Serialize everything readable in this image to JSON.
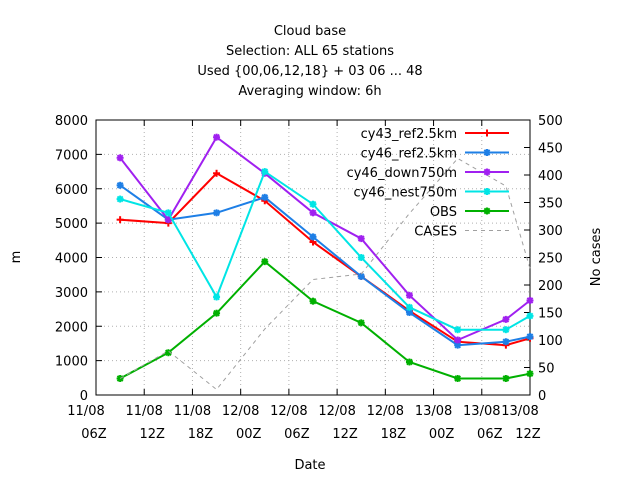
{
  "chart_data": {
    "type": "line",
    "title": [
      "Cloud base",
      "Selection: ALL      65 stations",
      "Used {00,06,12,18} + 03 06 ... 48",
      "Averaging window:  6h"
    ],
    "xlabel": "Date",
    "ylabel": "m",
    "y2label": "No cases",
    "x_ticks": [
      {
        "t": 0,
        "top": "11/08",
        "bottom": "06Z"
      },
      {
        "t": 6,
        "top": "11/08",
        "bottom": "12Z"
      },
      {
        "t": 12,
        "top": "11/08",
        "bottom": "18Z"
      },
      {
        "t": 18,
        "top": "12/08",
        "bottom": "00Z"
      },
      {
        "t": 24,
        "top": "12/08",
        "bottom": "06Z"
      },
      {
        "t": 30,
        "top": "12/08",
        "bottom": "12Z"
      },
      {
        "t": 36,
        "top": "12/08",
        "bottom": "18Z"
      },
      {
        "t": 42,
        "top": "13/08",
        "bottom": "00Z"
      },
      {
        "t": 48,
        "top": "13/08",
        "bottom": "06Z"
      },
      {
        "t": 54,
        "top": "13/08",
        "bottom": "12Z"
      }
    ],
    "xlim": [
      0,
      54
    ],
    "ylim": [
      0,
      8000
    ],
    "y_ticks": [
      0,
      1000,
      2000,
      3000,
      4000,
      5000,
      6000,
      7000,
      8000
    ],
    "y2lim": [
      0,
      500
    ],
    "y2_ticks": [
      0,
      50,
      100,
      150,
      200,
      250,
      300,
      350,
      400,
      450,
      500
    ],
    "x": [
      3,
      9,
      15,
      21,
      27,
      33,
      39,
      45,
      51,
      54
    ],
    "legend_position": "top-right",
    "series": [
      {
        "name": "cy43_ref2.5km",
        "color": "#ff0000",
        "marker": "plus",
        "axis": "y",
        "values": [
          5100,
          5000,
          6450,
          5650,
          4450,
          3450,
          2450,
          1550,
          1450,
          1650
        ]
      },
      {
        "name": "cy46_ref2.5km",
        "color": "#1e7fe6",
        "marker": "star",
        "axis": "y",
        "values": [
          6100,
          5100,
          5300,
          5750,
          4600,
          3450,
          2400,
          1450,
          1550,
          1700
        ]
      },
      {
        "name": "cy46_down750m",
        "color": "#a020f0",
        "marker": "star",
        "axis": "y",
        "values": [
          6900,
          5100,
          7500,
          6450,
          5300,
          4550,
          2900,
          1600,
          2200,
          2750
        ]
      },
      {
        "name": "cy46_nest750m",
        "color": "#00e5e5",
        "marker": "star",
        "axis": "y",
        "values": [
          5700,
          5300,
          2850,
          6500,
          5550,
          4000,
          2550,
          1900,
          1900,
          2300
        ]
      },
      {
        "name": "OBS",
        "color": "#00b000",
        "marker": "star",
        "axis": "y",
        "values": [
          480,
          1230,
          2380,
          3880,
          2730,
          2100,
          960,
          480,
          480,
          620
        ]
      },
      {
        "name": "CASES",
        "color": "#a0a0a0",
        "marker": "none",
        "dash": true,
        "axis": "y2",
        "values": [
          30,
          80,
          10,
          120,
          210,
          220,
          330,
          430,
          380,
          230
        ]
      }
    ]
  }
}
